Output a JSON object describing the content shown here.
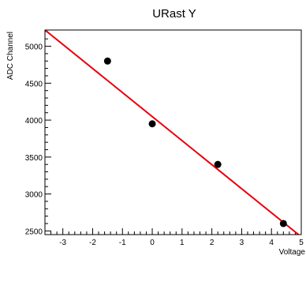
{
  "chart_data": {
    "type": "scatter",
    "title": "URast Y",
    "xlabel": "Voltage",
    "ylabel": "ADC Channel",
    "xlim": [
      -3.6,
      5.0
    ],
    "ylim": [
      2450,
      5220
    ],
    "x_ticks": [
      -3,
      -2,
      -1,
      0,
      1,
      2,
      3,
      4,
      5
    ],
    "y_ticks": [
      2500,
      3000,
      3500,
      4000,
      4500,
      5000
    ],
    "grid": false,
    "points": [
      {
        "x": -1.5,
        "y": 4800
      },
      {
        "x": 0.0,
        "y": 3950
      },
      {
        "x": 2.2,
        "y": 3400
      },
      {
        "x": 4.4,
        "y": 2600
      }
    ],
    "fit_line": {
      "x": [
        -3.6,
        5.0
      ],
      "y": [
        5220,
        2420
      ]
    },
    "colors": {
      "points": "#000000",
      "fit_line": "#e8000b",
      "frame": "#000000"
    }
  }
}
